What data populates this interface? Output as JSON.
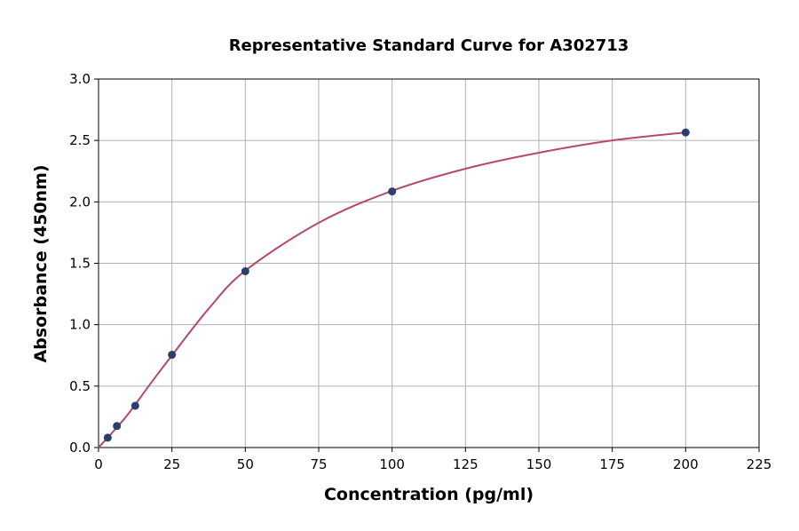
{
  "chart_data": {
    "type": "scatter",
    "title": "Representative Standard Curve for A302713",
    "x_label": "Concentration (pg/ml)",
    "y_label": "Absorbance (450nm)",
    "xlim": [
      0,
      225
    ],
    "ylim": [
      0,
      3.0
    ],
    "xticks": [
      0,
      25,
      50,
      75,
      100,
      125,
      150,
      175,
      200,
      225
    ],
    "yticks": [
      {
        "value": 0,
        "label": "0.0"
      },
      0.5,
      {
        "value": 1,
        "label": "1.0"
      },
      1.5,
      {
        "value": 2,
        "label": "2.0"
      },
      2.5,
      {
        "value": 3,
        "label": "3.0"
      }
    ],
    "grid": true,
    "points": {
      "color": "#2b3f6c",
      "x": [
        3.125,
        6.25,
        12.5,
        25,
        50,
        100,
        200
      ],
      "y": [
        0.08,
        0.175,
        0.34,
        0.755,
        1.435,
        2.085,
        2.565
      ]
    },
    "curve": {
      "color": "#b5496c",
      "x": [
        0,
        5,
        10,
        18,
        25,
        37.5,
        50,
        75,
        100,
        125,
        150,
        175,
        200
      ],
      "y": [
        0,
        0.13,
        0.27,
        0.53,
        0.75,
        1.13,
        1.44,
        1.83,
        2.09,
        2.27,
        2.4,
        2.5,
        2.565
      ]
    }
  }
}
